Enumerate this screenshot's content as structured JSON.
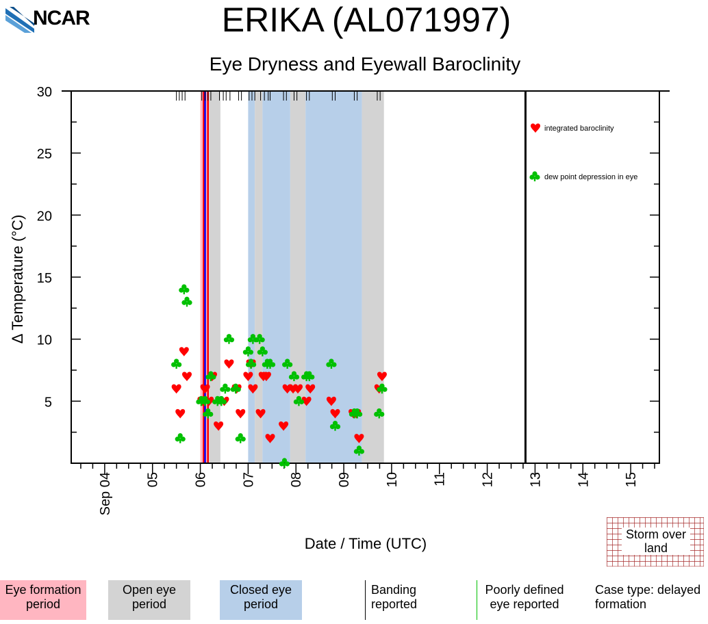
{
  "header": {
    "logo_text": "NCAR",
    "title": "ERIKA (AL071997)",
    "subtitle": "Eye Dryness and Eyewall Baroclinity"
  },
  "colors": {
    "formation": "#ffb6c1",
    "open_eye": "#d3d3d3",
    "closed_eye": "#b7cfe9",
    "baroclinity": "#ff0000",
    "dewpoint": "#00c000",
    "land_hatch": "#a52a2a"
  },
  "chart_data": {
    "type": "scatter",
    "title": "Eye Dryness and Eyewall Baroclinity",
    "xlabel": "Date / Time (UTC)",
    "ylabel": "Δ Temperature (°C)",
    "xlim": [
      3.3,
      15.6
    ],
    "ylim": [
      0,
      30
    ],
    "y_ticks": [
      5,
      10,
      15,
      20,
      25,
      30
    ],
    "x_tick_labels": [
      {
        "x": 4,
        "label": "Sep 04"
      },
      {
        "x": 5,
        "label": "05"
      },
      {
        "x": 6,
        "label": "06"
      },
      {
        "x": 7,
        "label": "07"
      },
      {
        "x": 8,
        "label": "08"
      },
      {
        "x": 9,
        "label": "09"
      },
      {
        "x": 10,
        "label": "10"
      },
      {
        "x": 11,
        "label": "11"
      },
      {
        "x": 12,
        "label": "12"
      },
      {
        "x": 13,
        "label": "13"
      },
      {
        "x": 14,
        "label": "14"
      },
      {
        "x": 15,
        "label": "15"
      }
    ],
    "periods": [
      {
        "type": "formation",
        "start": 6.0,
        "end": 6.18
      },
      {
        "type": "open",
        "start": 6.18,
        "end": 6.42
      },
      {
        "type": "closed",
        "start": 7.0,
        "end": 7.14
      },
      {
        "type": "open",
        "start": 7.14,
        "end": 7.3
      },
      {
        "type": "closed",
        "start": 7.3,
        "end": 7.88
      },
      {
        "type": "open",
        "start": 7.88,
        "end": 8.2
      },
      {
        "type": "closed",
        "start": 8.2,
        "end": 9.38
      },
      {
        "type": "open",
        "start": 9.38,
        "end": 9.84
      }
    ],
    "vertical_lines": [
      {
        "x": 6.07,
        "color": "#ff0000"
      },
      {
        "x": 6.1,
        "color": "#0000ff"
      },
      {
        "x": 6.16,
        "color": "#ff0000"
      },
      {
        "x": 12.8,
        "color": "#000000"
      }
    ],
    "banding_reports": [
      5.5,
      5.56,
      5.62,
      5.68,
      6.03,
      6.1,
      6.16,
      6.22,
      6.4,
      6.48,
      6.54,
      6.62,
      6.8,
      6.86,
      7.02,
      7.08,
      7.14,
      7.26,
      7.34,
      7.42,
      7.46,
      7.74,
      7.8,
      7.96,
      8.02,
      8.22,
      8.28,
      8.76,
      8.82,
      9.22,
      9.28,
      9.7,
      9.76
    ],
    "series": [
      {
        "name": "integrated baroclinity",
        "marker": "heart",
        "points": [
          [
            5.5,
            6
          ],
          [
            5.58,
            4
          ],
          [
            5.66,
            9
          ],
          [
            5.72,
            7
          ],
          [
            6.04,
            5
          ],
          [
            6.1,
            6
          ],
          [
            6.18,
            5
          ],
          [
            6.25,
            7
          ],
          [
            6.38,
            3
          ],
          [
            6.5,
            5
          ],
          [
            6.6,
            8
          ],
          [
            6.76,
            6
          ],
          [
            6.84,
            4
          ],
          [
            7.0,
            7
          ],
          [
            7.06,
            8
          ],
          [
            7.1,
            6
          ],
          [
            7.26,
            4
          ],
          [
            7.32,
            7
          ],
          [
            7.38,
            7
          ],
          [
            7.46,
            2
          ],
          [
            7.74,
            3
          ],
          [
            7.82,
            6
          ],
          [
            7.94,
            6
          ],
          [
            8.04,
            6
          ],
          [
            8.22,
            5
          ],
          [
            8.3,
            6
          ],
          [
            8.74,
            5
          ],
          [
            8.82,
            4
          ],
          [
            9.2,
            4
          ],
          [
            9.26,
            4
          ],
          [
            9.32,
            2
          ],
          [
            9.74,
            6
          ],
          [
            9.8,
            7
          ]
        ]
      },
      {
        "name": "dew point depression in eye",
        "marker": "club",
        "points": [
          [
            5.5,
            8
          ],
          [
            5.58,
            2
          ],
          [
            5.66,
            14
          ],
          [
            5.72,
            13
          ],
          [
            6.02,
            5
          ],
          [
            6.1,
            5
          ],
          [
            6.16,
            4
          ],
          [
            6.22,
            7
          ],
          [
            6.36,
            5
          ],
          [
            6.44,
            5
          ],
          [
            6.52,
            6
          ],
          [
            6.6,
            10
          ],
          [
            6.74,
            6
          ],
          [
            6.84,
            2
          ],
          [
            7.0,
            9
          ],
          [
            7.06,
            8
          ],
          [
            7.1,
            10
          ],
          [
            7.24,
            10
          ],
          [
            7.3,
            9
          ],
          [
            7.4,
            8
          ],
          [
            7.46,
            8
          ],
          [
            7.76,
            0
          ],
          [
            7.82,
            8
          ],
          [
            7.96,
            7
          ],
          [
            8.06,
            5
          ],
          [
            8.22,
            7
          ],
          [
            8.28,
            7
          ],
          [
            8.74,
            8
          ],
          [
            8.82,
            3
          ],
          [
            9.22,
            4
          ],
          [
            9.28,
            4
          ],
          [
            9.32,
            1
          ],
          [
            9.74,
            4
          ],
          [
            9.8,
            6
          ]
        ]
      }
    ]
  },
  "legend": {
    "baroclinity": "integrated baroclinity",
    "dewpoint": "dew point depression in eye",
    "land": "Storm over land"
  },
  "bottom_legend": {
    "formation": "Eye formation period",
    "open": "Open eye period",
    "closed": "Closed eye period",
    "banding": "Banding reported",
    "poorly": "Poorly defined eye reported",
    "case_type": "Case type: delayed formation"
  }
}
